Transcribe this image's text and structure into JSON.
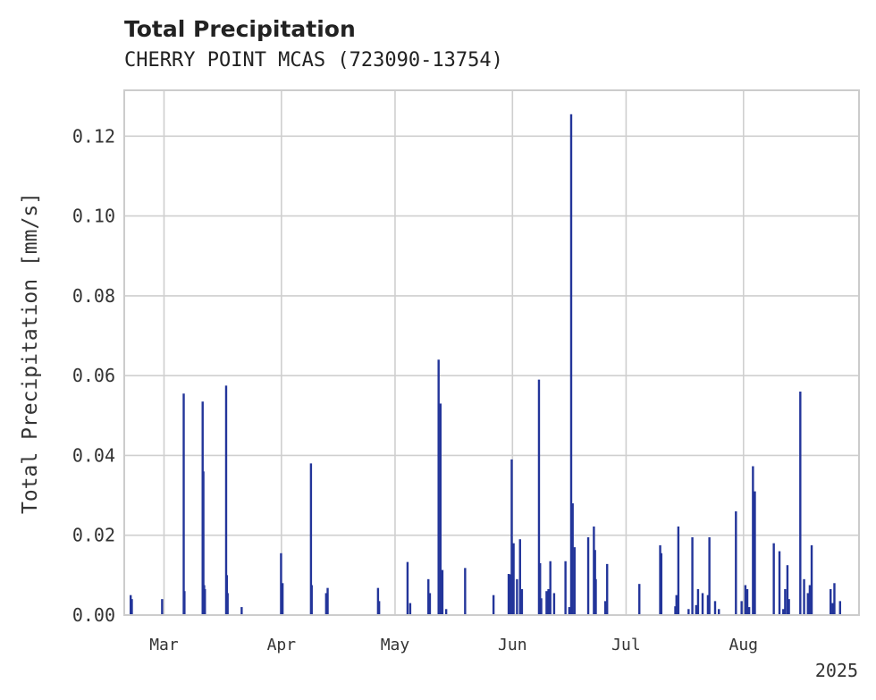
{
  "chart_data": {
    "type": "bar",
    "title": "Total Precipitation",
    "subtitle": "CHERRY POINT MCAS (723090-13754)",
    "ylabel": "Total Precipitation [mm/s]",
    "xlabel": "",
    "year_label": "2025",
    "ylim": [
      0,
      0.1315
    ],
    "yticks": [
      {
        "value": 0.0,
        "label": "0.00"
      },
      {
        "value": 0.02,
        "label": "0.02"
      },
      {
        "value": 0.04,
        "label": "0.04"
      },
      {
        "value": 0.06,
        "label": "0.06"
      },
      {
        "value": 0.08,
        "label": "0.08"
      },
      {
        "value": 0.1,
        "label": "0.10"
      },
      {
        "value": 0.12,
        "label": "0.12"
      }
    ],
    "xlim_day": [
      -10.5,
      183.5
    ],
    "xlim_note": "days since 2025-03-01",
    "xticks": [
      {
        "day": 0,
        "label": "Mar"
      },
      {
        "day": 31,
        "label": "Apr"
      },
      {
        "day": 61,
        "label": "May"
      },
      {
        "day": 92,
        "label": "Jun"
      },
      {
        "day": 122,
        "label": "Jul"
      },
      {
        "day": 153,
        "label": "Aug"
      }
    ],
    "grid": true,
    "color": "#23359a",
    "series": [
      {
        "name": "Total Precipitation",
        "day": [
          -8.8,
          -8.5,
          -0.5,
          5.2,
          5.4,
          10.2,
          10.4,
          10.6,
          10.8,
          16.4,
          16.6,
          16.8,
          20.5,
          30.9,
          31.3,
          38.8,
          39.0,
          42.8,
          43.2,
          56.5,
          56.8,
          64.3,
          65.0,
          69.8,
          70.2,
          72.5,
          73.0,
          73.5,
          74.5,
          79.5,
          87.0,
          91.0,
          91.5,
          91.8,
          92.3,
          93.2,
          94.0,
          94.5,
          99.0,
          99.3,
          99.6,
          101.0,
          101.5,
          102.0,
          103.0,
          106.0,
          107.0,
          107.5,
          107.9,
          108.4,
          112.0,
          113.5,
          113.8,
          114.0,
          116.5,
          117.0,
          125.5,
          131.0,
          131.3,
          135.0,
          135.3,
          135.8,
          138.5,
          139.5,
          140.5,
          141.0,
          142.2,
          143.6,
          144.0,
          145.5,
          146.5,
          151.0,
          152.5,
          153.5,
          154.0,
          154.5,
          155.5,
          156.0,
          161.0,
          162.5,
          163.5,
          164.0,
          164.6,
          165.0,
          168.0,
          169.0,
          170.0,
          170.5,
          171.0,
          176.0,
          176.5,
          177.0,
          178.5
        ],
        "values": [
          0.005,
          0.004,
          0.004,
          0.0555,
          0.006,
          0.0535,
          0.036,
          0.0075,
          0.0065,
          0.0575,
          0.01,
          0.0055,
          0.002,
          0.0155,
          0.008,
          0.038,
          0.0075,
          0.0055,
          0.0068,
          0.0068,
          0.0035,
          0.0133,
          0.003,
          0.009,
          0.0055,
          0.064,
          0.053,
          0.0113,
          0.0015,
          0.0118,
          0.005,
          0.0103,
          0.0102,
          0.039,
          0.018,
          0.009,
          0.019,
          0.0065,
          0.059,
          0.013,
          0.0042,
          0.006,
          0.0065,
          0.0135,
          0.0055,
          0.0135,
          0.002,
          0.1255,
          0.028,
          0.017,
          0.0195,
          0.0222,
          0.0163,
          0.009,
          0.0035,
          0.0128,
          0.0078,
          0.0175,
          0.0155,
          0.0022,
          0.005,
          0.0222,
          0.0015,
          0.0195,
          0.0025,
          0.0065,
          0.0055,
          0.005,
          0.0195,
          0.0035,
          0.0015,
          0.026,
          0.0035,
          0.0075,
          0.0065,
          0.002,
          0.0373,
          0.031,
          0.018,
          0.016,
          0.0015,
          0.0065,
          0.0125,
          0.004,
          0.056,
          0.009,
          0.0055,
          0.0075,
          0.0175,
          0.0065,
          0.003,
          0.008,
          0.0035
        ]
      }
    ]
  }
}
